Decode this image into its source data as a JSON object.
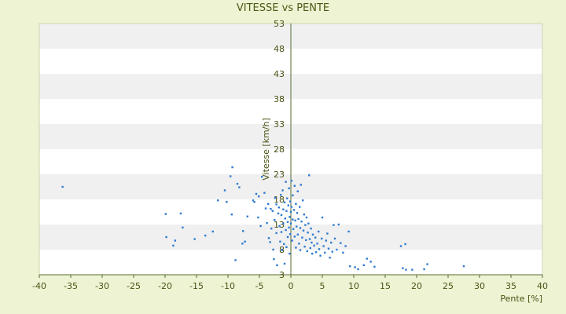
{
  "chart_data": {
    "type": "scatter",
    "title": "VITESSE vs PENTE",
    "xlabel": "Pente [%]",
    "ylabel": "Vitesse [km/h]",
    "xlim": [
      -40,
      40
    ],
    "ylim": [
      3,
      53
    ],
    "xticks": [
      -40,
      -35,
      -30,
      -25,
      -20,
      -15,
      -10,
      -5,
      0,
      5,
      10,
      15,
      20,
      25,
      30,
      35,
      40
    ],
    "yticks": [
      3,
      8,
      13,
      18,
      23,
      28,
      33,
      38,
      43,
      48,
      53
    ],
    "xtick_labels": [
      "-40",
      "-35",
      "-30",
      "-25",
      "-20",
      "-15",
      "-10",
      "-5",
      "0",
      "5",
      "10",
      "15",
      "20",
      "25",
      "30",
      "35",
      "40"
    ],
    "ytick_labels": [
      "3",
      "8",
      "13",
      "18",
      "23",
      "28",
      "33",
      "38",
      "43",
      "48",
      "53"
    ],
    "grid": "horizontal bands",
    "legend": "none",
    "colors": {
      "background": "#eef3d4",
      "band_white": "#ffffff",
      "band_gray": "#f0f0f0",
      "axis": "#556b2f",
      "point": "#2f7bd1",
      "text": "#4a5214"
    },
    "series": [
      {
        "points": [
          [
            -36.3,
            20.5
          ],
          [
            -19.9,
            15.1
          ],
          [
            -19.8,
            10.5
          ],
          [
            -18.4,
            9.8
          ],
          [
            -18.7,
            8.8
          ],
          [
            -17.5,
            15.2
          ],
          [
            -17.2,
            12.4
          ],
          [
            -15.3,
            10.1
          ],
          [
            -13.6,
            10.8
          ],
          [
            -12.4,
            11.6
          ],
          [
            -11.6,
            17.8
          ],
          [
            -10.5,
            19.8
          ],
          [
            -10.2,
            17.5
          ],
          [
            -9.6,
            22.6
          ],
          [
            -9.3,
            24.4
          ],
          [
            -9.4,
            15.0
          ],
          [
            -8.8,
            5.9
          ],
          [
            -8.5,
            21.1
          ],
          [
            -8.2,
            20.4
          ],
          [
            -7.6,
            11.7
          ],
          [
            -7.7,
            9.2
          ],
          [
            -7.3,
            9.6
          ],
          [
            -6.9,
            14.6
          ],
          [
            -6.0,
            17.8
          ],
          [
            -5.8,
            17.5
          ],
          [
            -5.5,
            19.1
          ],
          [
            -5.1,
            18.6
          ],
          [
            -5.2,
            14.4
          ],
          [
            -4.8,
            12.7
          ],
          [
            -4.6,
            22.5
          ],
          [
            -4.2,
            19.3
          ],
          [
            -4.0,
            16.2
          ],
          [
            -3.8,
            13.3
          ],
          [
            -3.6,
            17.1
          ],
          [
            -3.5,
            10.3
          ],
          [
            -3.3,
            9.5
          ],
          [
            -3.2,
            16.1
          ],
          [
            -3.1,
            12.2
          ],
          [
            -2.9,
            15.7
          ],
          [
            -2.8,
            8.0
          ],
          [
            -2.7,
            6.1
          ],
          [
            -2.6,
            13.9
          ],
          [
            -2.5,
            18.3
          ],
          [
            -2.3,
            17.0
          ],
          [
            -2.3,
            11.3
          ],
          [
            -2.2,
            4.9
          ],
          [
            -2.0,
            15.2
          ],
          [
            -1.9,
            16.4
          ],
          [
            -1.8,
            12.7
          ],
          [
            -1.7,
            9.6
          ],
          [
            -1.6,
            18.9
          ],
          [
            -1.5,
            14.9
          ],
          [
            -1.5,
            11.5
          ],
          [
            -1.4,
            7.9
          ],
          [
            -1.3,
            19.8
          ],
          [
            -1.2,
            16.0
          ],
          [
            -1.2,
            13.2
          ],
          [
            -1.1,
            9.1
          ],
          [
            -1.0,
            5.2
          ],
          [
            -1.0,
            17.4
          ],
          [
            -0.9,
            14.2
          ],
          [
            -0.8,
            21.5
          ],
          [
            -0.8,
            11.9
          ],
          [
            -0.7,
            15.7
          ],
          [
            -0.7,
            8.5
          ],
          [
            -0.6,
            18.2
          ],
          [
            -0.5,
            13.5
          ],
          [
            -0.5,
            10.5
          ],
          [
            -0.4,
            16.8
          ],
          [
            -0.3,
            20.2
          ],
          [
            -0.3,
            12.4
          ],
          [
            -0.2,
            14.5
          ],
          [
            -0.2,
            7.2
          ],
          [
            -0.1,
            17.6
          ],
          [
            -0.1,
            11.1
          ],
          [
            0.0,
            15.5
          ],
          [
            0.0,
            13.2
          ],
          [
            0.1,
            21.7
          ],
          [
            0.1,
            16.5
          ],
          [
            0.2,
            9.8
          ],
          [
            0.3,
            14.0
          ],
          [
            0.3,
            18.8
          ],
          [
            0.4,
            12.1
          ],
          [
            0.5,
            15.9
          ],
          [
            0.6,
            10.6
          ],
          [
            0.6,
            20.7
          ],
          [
            0.7,
            13.8
          ],
          [
            0.8,
            17.1
          ],
          [
            0.8,
            8.4
          ],
          [
            0.9,
            12.6
          ],
          [
            1.0,
            15.3
          ],
          [
            1.1,
            11.0
          ],
          [
            1.1,
            19.6
          ],
          [
            1.2,
            14.1
          ],
          [
            1.3,
            9.2
          ],
          [
            1.4,
            16.5
          ],
          [
            1.5,
            12.3
          ],
          [
            1.5,
            7.9
          ],
          [
            1.6,
            20.9
          ],
          [
            1.7,
            13.6
          ],
          [
            1.8,
            10.4
          ],
          [
            1.9,
            17.8
          ],
          [
            2.0,
            11.8
          ],
          [
            2.1,
            15.0
          ],
          [
            2.2,
            8.6
          ],
          [
            2.3,
            12.9
          ],
          [
            2.4,
            9.9
          ],
          [
            2.5,
            14.4
          ],
          [
            2.6,
            7.7
          ],
          [
            2.7,
            11.4
          ],
          [
            2.8,
            13.2
          ],
          [
            2.9,
            22.8
          ],
          [
            3.0,
            10.1
          ],
          [
            3.1,
            8.3
          ],
          [
            3.2,
            12.2
          ],
          [
            3.3,
            9.4
          ],
          [
            3.4,
            7.2
          ],
          [
            3.5,
            11.0
          ],
          [
            3.7,
            8.8
          ],
          [
            3.9,
            10.4
          ],
          [
            4.0,
            7.5
          ],
          [
            4.2,
            9.2
          ],
          [
            4.4,
            11.6
          ],
          [
            4.5,
            8.1
          ],
          [
            4.7,
            6.8
          ],
          [
            4.9,
            10.2
          ],
          [
            5.0,
            14.4
          ],
          [
            5.2,
            8.7
          ],
          [
            5.4,
            7.4
          ],
          [
            5.6,
            9.8
          ],
          [
            5.8,
            11.2
          ],
          [
            6.0,
            8.2
          ],
          [
            6.2,
            6.4
          ],
          [
            6.4,
            9.4
          ],
          [
            6.6,
            7.6
          ],
          [
            6.8,
            12.9
          ],
          [
            7.0,
            10.2
          ],
          [
            7.3,
            8.0
          ],
          [
            7.6,
            13.0
          ],
          [
            7.9,
            9.3
          ],
          [
            8.3,
            7.4
          ],
          [
            8.7,
            8.7
          ],
          [
            9.2,
            11.6
          ],
          [
            9.4,
            4.7
          ],
          [
            10.2,
            4.5
          ],
          [
            10.7,
            4.1
          ],
          [
            11.6,
            4.9
          ],
          [
            12.1,
            6.2
          ],
          [
            12.7,
            5.6
          ],
          [
            13.3,
            4.6
          ],
          [
            17.5,
            8.7
          ],
          [
            17.8,
            4.3
          ],
          [
            18.2,
            9.1
          ],
          [
            18.3,
            4.0
          ],
          [
            19.3,
            4.0
          ],
          [
            21.2,
            4.1
          ],
          [
            21.7,
            5.1
          ],
          [
            27.5,
            4.7
          ]
        ]
      }
    ]
  }
}
